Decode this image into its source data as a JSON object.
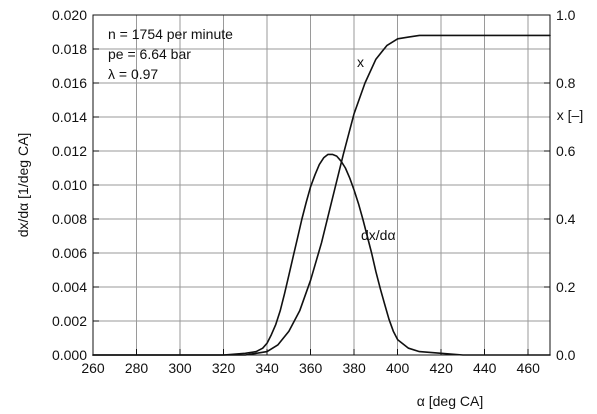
{
  "chart_data": {
    "type": "line",
    "title": "",
    "xlabel": "α [deg CA]",
    "ylabel_left": "dx/dα [1/deg CA]",
    "ylabel_right": "x [–]",
    "grid": true,
    "xlim": [
      260,
      470
    ],
    "ylim_left": [
      0,
      0.02
    ],
    "ylim_right": [
      0,
      1.0
    ],
    "x_ticks": [
      "260",
      "280",
      "300",
      "320",
      "340",
      "360",
      "380",
      "400",
      "420",
      "440",
      "460"
    ],
    "y_left_ticks": [
      "0.000",
      "0.002",
      "0.004",
      "0.006",
      "0.008",
      "0.010",
      "0.012",
      "0.014",
      "0.016",
      "0.018",
      "0.020"
    ],
    "y_right_ticks": [
      "0.0",
      "0.2",
      "0.4",
      "0.6",
      "0.8",
      "1.0"
    ],
    "annotations": [
      "n = 1754 per minute",
      "pe = 6.64 bar",
      "λ = 0.97"
    ],
    "series": [
      {
        "name": "dx/dα",
        "axis": "left",
        "x": [
          260,
          270,
          280,
          290,
          300,
          310,
          320,
          330,
          335,
          338,
          340,
          342,
          344,
          346,
          348,
          350,
          352,
          354,
          356,
          358,
          360,
          362,
          364,
          366,
          368,
          370,
          372,
          374,
          376,
          378,
          380,
          382,
          384,
          386,
          388,
          390,
          392,
          394,
          396,
          398,
          400,
          405,
          410,
          420,
          430,
          440,
          450,
          460,
          470
        ],
        "values": [
          0.0,
          0.0,
          0.0,
          0.0,
          0.0,
          0.0,
          0.0,
          0.0001,
          0.0002,
          0.0004,
          0.0007,
          0.0012,
          0.0018,
          0.0026,
          0.0036,
          0.0047,
          0.0058,
          0.0069,
          0.008,
          0.009,
          0.0099,
          0.0106,
          0.0112,
          0.0116,
          0.0118,
          0.0118,
          0.0117,
          0.0114,
          0.011,
          0.0104,
          0.0097,
          0.0089,
          0.008,
          0.007,
          0.006,
          0.0049,
          0.0039,
          0.003,
          0.0021,
          0.0014,
          0.0009,
          0.0004,
          0.0002,
          0.0001,
          0.0,
          0.0,
          0.0,
          0.0,
          0.0
        ]
      },
      {
        "name": "x",
        "axis": "right",
        "x": [
          260,
          300,
          330,
          340,
          345,
          350,
          355,
          360,
          365,
          370,
          375,
          380,
          385,
          390,
          395,
          400,
          405,
          410,
          420,
          430,
          440,
          450,
          460,
          470
        ],
        "values": [
          0.0,
          0.0,
          0.0,
          0.01,
          0.03,
          0.07,
          0.13,
          0.22,
          0.33,
          0.46,
          0.59,
          0.71,
          0.8,
          0.87,
          0.91,
          0.93,
          0.935,
          0.94,
          0.94,
          0.94,
          0.94,
          0.94,
          0.94,
          0.94
        ]
      }
    ]
  }
}
